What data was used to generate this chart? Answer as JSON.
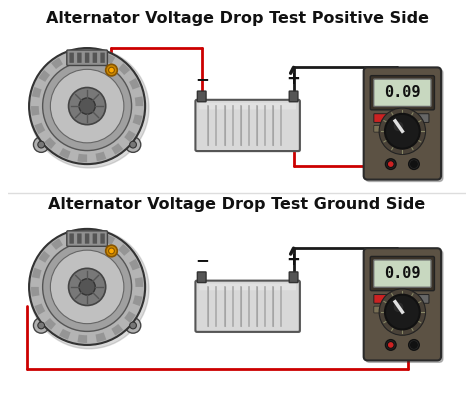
{
  "title1": "Alternator Voltage Drop Test Positive Side",
  "title2": "Alternator Voltage Drop Test Ground Side",
  "bg_color": "#ffffff",
  "title_color": "#111111",
  "title_fontsize": 11.5,
  "mm_body": "#5c5244",
  "mm_display_bg": "#c8d8c0",
  "mm_display_border": "#444444",
  "mm_text": "0.09",
  "mm_text_color": "#111111",
  "battery_fill": "#d8d8d8",
  "battery_border": "#555555",
  "wire_red": "#cc0000",
  "wire_black": "#1a1a1a",
  "alt_outer": "#b0b0b0",
  "alt_mid": "#989898",
  "alt_inner": "#808080",
  "alt_rotor": "#686868",
  "alt_border": "#333333",
  "connector_color": "#cc8800",
  "red_btn": "#cc2222",
  "wire_lw": 2.0
}
